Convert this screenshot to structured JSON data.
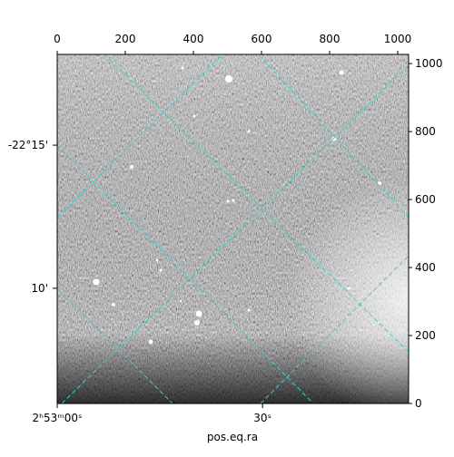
{
  "chart_data": {
    "type": "image",
    "xlabel": "pos.eq.ra",
    "xlim": [
      0,
      1032
    ],
    "ylim": [
      0,
      1027
    ],
    "xticks": [
      0,
      200,
      400,
      600,
      800,
      1000
    ],
    "yticks": [
      0,
      200,
      400,
      600,
      800,
      1000
    ],
    "ra_ticks": [
      {
        "value": 0,
        "label": "2ʰ53ᵐ00ˢ"
      },
      {
        "value": 603,
        "label": "30ˢ"
      }
    ],
    "dec_ticks": [
      {
        "value": 760,
        "label": "-22°15'"
      },
      {
        "value": 339,
        "label": "10'"
      }
    ]
  }
}
